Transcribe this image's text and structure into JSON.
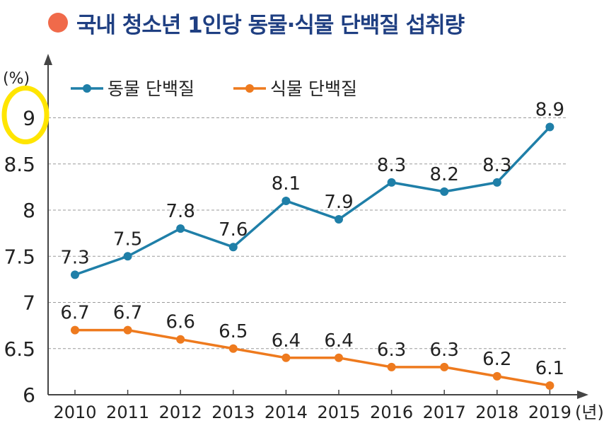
{
  "title": "국내 청소년 1인당 동물·식물 단백질 섭취량",
  "colors": {
    "title_dot": "#f06a4a",
    "title_text": "#1f3f82",
    "highlight": "#ffe500"
  },
  "chart_data": {
    "type": "line",
    "title": "국내 청소년 1인당 동물·식물 단백질 섭취량",
    "y_unit": "(%)",
    "x_unit": "(년)",
    "categories": [
      "2010",
      "2011",
      "2012",
      "2013",
      "2014",
      "2015",
      "2016",
      "2017",
      "2018",
      "2019"
    ],
    "ylim": [
      6,
      9.5
    ],
    "yticks": [
      "6",
      "6.5",
      "7",
      "7.5",
      "8",
      "8.5",
      "9"
    ],
    "grid": "horizontal dashed",
    "legend_position": "top-left",
    "series": [
      {
        "name": "동물 단백질",
        "color": "#1f7fa8",
        "values": [
          7.3,
          7.5,
          7.8,
          7.6,
          8.1,
          7.9,
          8.3,
          8.2,
          8.3,
          8.9
        ],
        "labels": [
          "7.3",
          "7.5",
          "7.8",
          "7.6",
          "8.1",
          "7.9",
          "8.3",
          "8.2",
          "8.3",
          "8.9"
        ]
      },
      {
        "name": "식물 단백질",
        "color": "#ee7a1e",
        "values": [
          6.7,
          6.7,
          6.6,
          6.5,
          6.4,
          6.4,
          6.3,
          6.3,
          6.2,
          6.1
        ],
        "labels": [
          "6.7",
          "6.7",
          "6.6",
          "6.5",
          "6.4",
          "6.4",
          "6.3",
          "6.3",
          "6.2",
          "6.1"
        ]
      }
    ]
  }
}
